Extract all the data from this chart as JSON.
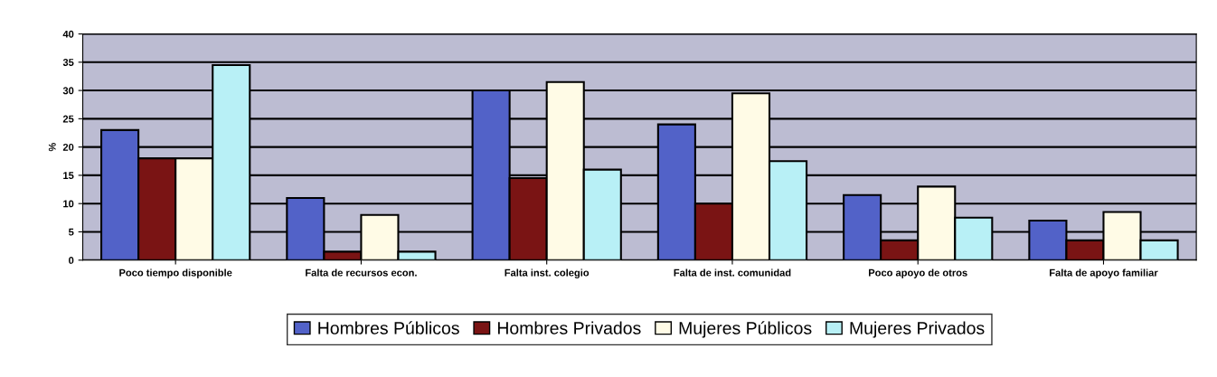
{
  "chart_data": {
    "type": "bar",
    "ylabel": "%",
    "categories": [
      "Poco tiempo disponible",
      "Falta de recursos econ.",
      "Falta inst. colegio",
      "Falta de inst. comunidad",
      "Poco apoyo de otros",
      "Falta de apoyo familiar"
    ],
    "series": [
      {
        "name": "Hombres Públicos",
        "color": "#5262c8",
        "values": [
          23,
          11,
          30,
          24,
          11.5,
          7
        ]
      },
      {
        "name": "Hombres Privados",
        "color": "#7a1414",
        "values": [
          18,
          1.5,
          14.5,
          10,
          3.5,
          3.5
        ]
      },
      {
        "name": "Mujeres Públicos",
        "color": "#fffbe6",
        "values": [
          18,
          8,
          31.5,
          29.5,
          13,
          8.5
        ]
      },
      {
        "name": "Mujeres Privados",
        "color": "#b8f0f6",
        "values": [
          34.5,
          1.5,
          16,
          17.5,
          7.5,
          3.5
        ]
      }
    ],
    "ylim": [
      0,
      40
    ],
    "yticks": [
      0,
      5,
      10,
      15,
      20,
      25,
      30,
      35,
      40
    ],
    "grid": "y",
    "legend": "bottom"
  }
}
